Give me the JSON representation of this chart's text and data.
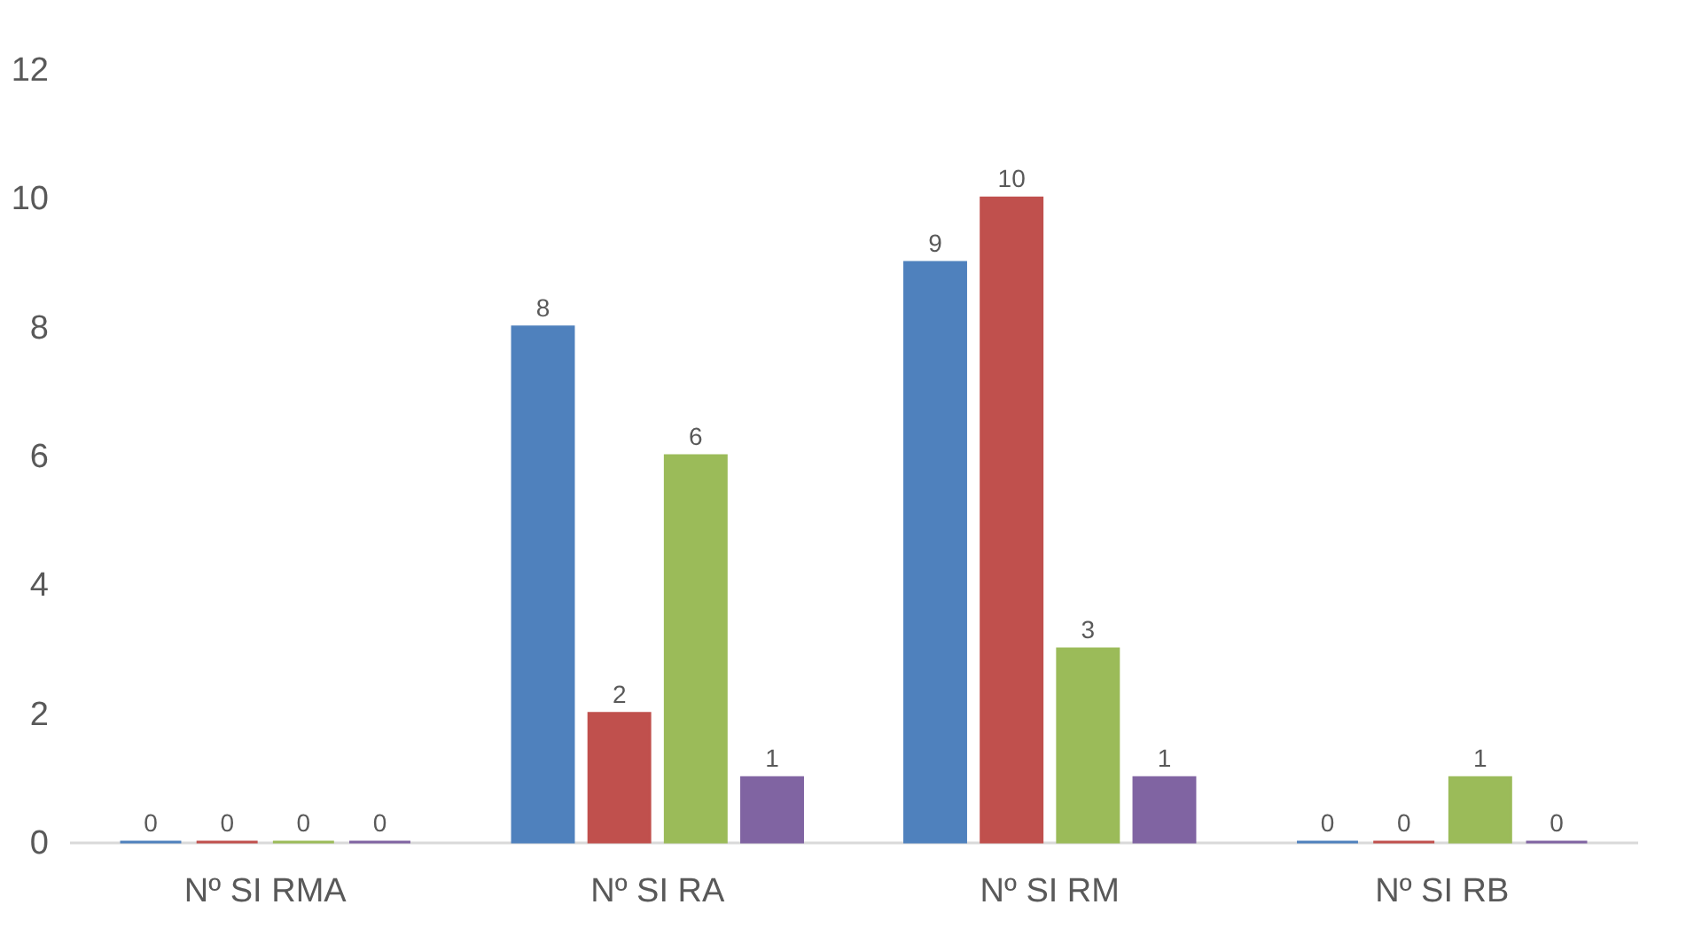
{
  "chart_data": {
    "type": "bar",
    "categories": [
      "Nº SI RMA",
      "Nº SI RA",
      "Nº SI RM",
      "Nº SI RB"
    ],
    "series": [
      {
        "color": "#4f81bd",
        "values": [
          0,
          8,
          9,
          0
        ]
      },
      {
        "color": "#c0504d",
        "values": [
          0,
          2,
          10,
          0
        ]
      },
      {
        "color": "#9bbb59",
        "values": [
          0,
          6,
          3,
          1
        ]
      },
      {
        "color": "#8064a2",
        "values": [
          0,
          1,
          1,
          0
        ]
      }
    ],
    "ylim": [
      0,
      12
    ],
    "yticks": [
      0,
      2,
      4,
      6,
      8,
      10,
      12
    ],
    "grid": false,
    "legend": false,
    "data_labels": true
  }
}
